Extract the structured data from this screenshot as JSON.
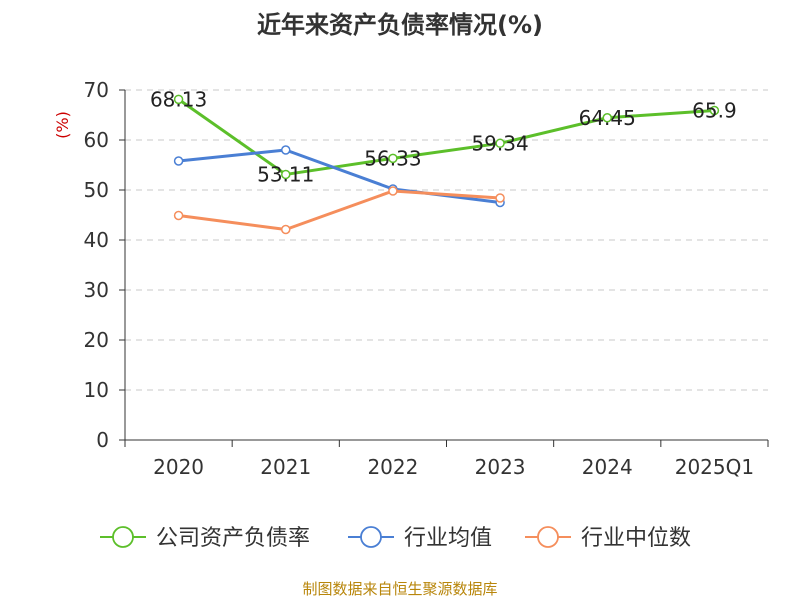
{
  "chart_data": {
    "type": "line",
    "title": "近年来资产负债率情况(%)",
    "ylabel": "(%)",
    "xlabel": "",
    "categories": [
      "2020",
      "2021",
      "2022",
      "2023",
      "2024",
      "2025Q1"
    ],
    "ylim": [
      0,
      70
    ],
    "yticks": [
      0,
      10,
      20,
      30,
      40,
      50,
      60,
      70
    ],
    "grid": true,
    "legend_position": "bottom",
    "series": [
      {
        "name": "公司资产负债率",
        "color": "#5cbf2a",
        "values": [
          68.13,
          53.11,
          56.33,
          59.34,
          64.45,
          65.9
        ],
        "labels": [
          "68.13",
          "53.11",
          "56.33",
          "59.34",
          "64.45",
          "65.9"
        ]
      },
      {
        "name": "行业均值",
        "color": "#4a7fd4",
        "values": [
          55.8,
          58.0,
          50.2,
          47.5,
          null,
          null
        ]
      },
      {
        "name": "行业中位数",
        "color": "#f58e5c",
        "values": [
          44.9,
          42.1,
          49.8,
          48.4,
          null,
          null
        ]
      }
    ]
  },
  "source": "制图数据来自恒生聚源数据库"
}
